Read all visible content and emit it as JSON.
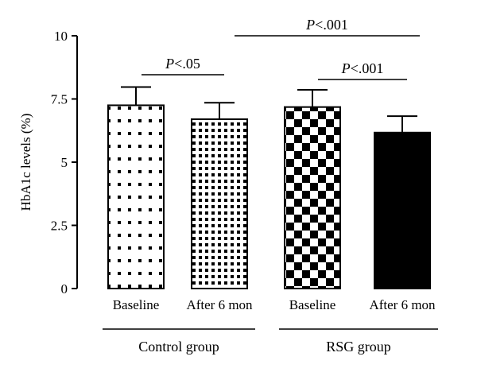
{
  "chart_data": {
    "type": "bar",
    "ylabel": "HbA1c levels (%)",
    "ylim": [
      0,
      10
    ],
    "yticks": [
      0,
      2.5,
      5,
      7.5,
      10
    ],
    "ytick_labels": [
      "0",
      "2.5",
      "5",
      "7.5",
      "10"
    ],
    "categories": [
      "Baseline",
      "After 6 mon",
      "Baseline",
      "After 6 mon"
    ],
    "values": [
      7.25,
      6.7,
      7.18,
      6.17
    ],
    "errors": [
      0.72,
      0.65,
      0.68,
      0.65
    ],
    "patterns": [
      "sparse-dots",
      "dense-dots",
      "checker",
      "solid-black"
    ],
    "groups": [
      {
        "label": "Control group",
        "bars": [
          0,
          1
        ]
      },
      {
        "label": "RSG group",
        "bars": [
          2,
          3
        ]
      }
    ],
    "significance": [
      {
        "from": 0,
        "to": 1,
        "level": 8.5,
        "prefix": "P",
        "text": "<.05"
      },
      {
        "from": 1,
        "to": 3,
        "level": 10.0,
        "prefix": "P",
        "text": "<.001"
      },
      {
        "from": 2,
        "to": 3,
        "level": 8.5,
        "prefix": "P",
        "text": "<.001"
      }
    ],
    "grid": false,
    "colors": {
      "ink": "#000000",
      "background": "#ffffff"
    }
  }
}
